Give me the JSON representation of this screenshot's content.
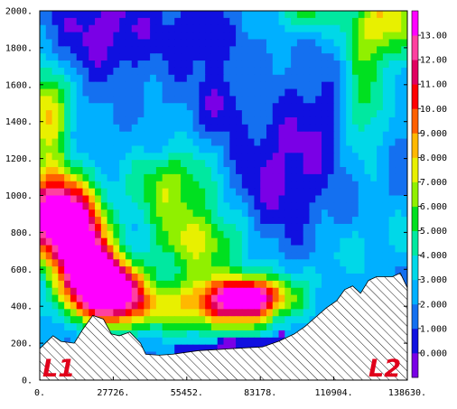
{
  "chart_data": {
    "type": "heatmap",
    "title": "",
    "xlabel": "",
    "ylabel": "",
    "x_ticks": [
      "0.",
      "27726.",
      "55452.",
      "83178.",
      "110904.",
      "138630."
    ],
    "y_ticks": [
      "0.",
      "200.",
      "400.",
      "600.",
      "800.",
      "1000.",
      "1200.",
      "1400.",
      "1600.",
      "1800.",
      "2000."
    ],
    "xlim": [
      0,
      138630
    ],
    "ylim": [
      0,
      2000
    ],
    "colorbar": {
      "tick_labels": [
        "0.000",
        "1.000",
        "2.000",
        "3.000",
        "4.000",
        "5.000",
        "6.000",
        "7.000",
        "8.000",
        "9.000",
        "10.00",
        "11.00",
        "12.00",
        "13.00"
      ],
      "range": [
        -1,
        14
      ],
      "colors": [
        "#7a00e6",
        "#1010e0",
        "#1470f0",
        "#00b0ff",
        "#00d8e8",
        "#00e8a0",
        "#00e020",
        "#90f000",
        "#e8f000",
        "#ffb800",
        "#ff6000",
        "#ff0000",
        "#e00060",
        "#ff40a0",
        "#ff00ff"
      ]
    },
    "annotations": [
      "L1",
      "L2"
    ],
    "terrain": {
      "x": [
        0,
        5000,
        8000,
        13000,
        16000,
        20000,
        24000,
        27000,
        30000,
        34000,
        38000,
        40000,
        45000,
        50000,
        55000,
        60000,
        66000,
        72000,
        78000,
        84000,
        90000,
        96000,
        100000,
        104000,
        108000,
        112000,
        115000,
        118000,
        121000,
        124000,
        127000,
        130000,
        133000,
        136000,
        138630
      ],
      "y": [
        170,
        240,
        210,
        200,
        270,
        350,
        330,
        250,
        240,
        260,
        200,
        140,
        135,
        140,
        150,
        160,
        165,
        170,
        175,
        180,
        210,
        250,
        290,
        340,
        390,
        430,
        490,
        510,
        470,
        540,
        560,
        560,
        560,
        580,
        500
      ]
    },
    "field_centers": [
      {
        "x": 5000,
        "y": 900,
        "value": 12.4,
        "sx": 14000,
        "sy": 240
      },
      {
        "x": 16000,
        "y": 680,
        "value": 10.8,
        "sx": 10000,
        "sy": 250
      },
      {
        "x": 24000,
        "y": 520,
        "value": 9.5,
        "sx": 9000,
        "sy": 150
      },
      {
        "x": 30000,
        "y": 440,
        "value": 8.2,
        "sx": 13000,
        "sy": 170
      },
      {
        "x": 68000,
        "y": 420,
        "value": 7.0,
        "sx": 22000,
        "sy": 150
      },
      {
        "x": 80000,
        "y": 450,
        "value": 7.5,
        "sx": 12000,
        "sy": 100
      },
      {
        "x": 60000,
        "y": 750,
        "value": 5.0,
        "sx": 18000,
        "sy": 170
      },
      {
        "x": 50000,
        "y": 1050,
        "value": 4.6,
        "sx": 16000,
        "sy": 200
      },
      {
        "x": 3000,
        "y": 1450,
        "value": 6.5,
        "sx": 8000,
        "sy": 230
      },
      {
        "x": 130000,
        "y": 1950,
        "value": 6.0,
        "sx": 14000,
        "sy": 220
      },
      {
        "x": 122000,
        "y": 1500,
        "value": 3.5,
        "sx": 8000,
        "sy": 300
      },
      {
        "x": 100000,
        "y": 2000,
        "value": 3.8,
        "sx": 9000,
        "sy": 130
      }
    ],
    "minima": [
      {
        "x": 25000,
        "y": 1900,
        "value": -2.5,
        "sx": 20000,
        "sy": 250
      },
      {
        "x": 60000,
        "y": 1850,
        "value": -2.0,
        "sx": 12000,
        "sy": 200
      },
      {
        "x": 68000,
        "y": 1500,
        "value": -2.0,
        "sx": 8000,
        "sy": 150
      },
      {
        "x": 88000,
        "y": 1100,
        "value": -2.2,
        "sx": 16000,
        "sy": 350
      },
      {
        "x": 105000,
        "y": 1400,
        "value": -1.5,
        "sx": 12000,
        "sy": 350
      }
    ],
    "surface_jet": {
      "x_start": 50000,
      "x_end": 92000,
      "value": 0.0
    }
  }
}
